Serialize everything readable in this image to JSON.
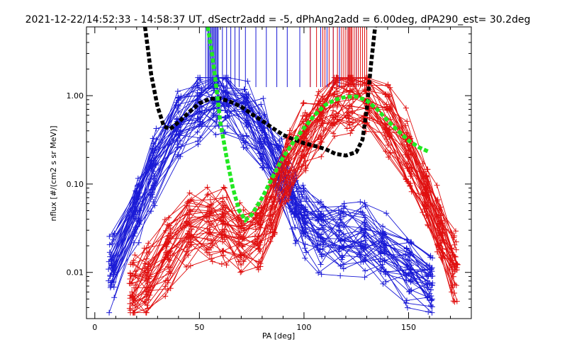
{
  "chart_data": {
    "type": "line",
    "title": "2021-12-22/14:52:33 - 14:58:37 UT, dSectr2add = -5, dPhAng2add = 6.00deg, dPA290_est=  30.2deg",
    "xlabel": "PA [deg]",
    "ylabel": "nflux [#/(cm2 s sr MeV)]",
    "xlim": [
      -4,
      180
    ],
    "ylim": [
      0.003,
      6.0
    ],
    "yscale": "log",
    "x_ticks": [
      0,
      50,
      100,
      150
    ],
    "x_tick_labels": [
      "0",
      "50",
      "100",
      "150"
    ],
    "y_ticks": [
      0.01,
      0.1,
      1.0
    ],
    "y_tick_labels": [
      "0.01",
      "0.10",
      "1.00"
    ],
    "grid": false,
    "colors": {
      "blue": "#1a1ad6",
      "red": "#e01010",
      "black": "#000000",
      "green": "#22e822"
    },
    "series": [
      {
        "color": "black",
        "style": "thick-dashed",
        "x": [
          24,
          27,
          30,
          33,
          36,
          40,
          45,
          50,
          55,
          60,
          65,
          70,
          75,
          80,
          85,
          90,
          95,
          100,
          105,
          110,
          115,
          120,
          125,
          128,
          130,
          132,
          134
        ],
        "y": [
          6.0,
          1.7,
          0.75,
          0.45,
          0.42,
          0.5,
          0.65,
          0.82,
          0.92,
          0.93,
          0.85,
          0.75,
          0.62,
          0.52,
          0.43,
          0.36,
          0.32,
          0.29,
          0.27,
          0.25,
          0.22,
          0.21,
          0.23,
          0.32,
          0.7,
          2.2,
          6.0
        ]
      },
      {
        "color": "green",
        "style": "thick-dashed",
        "x": [
          54,
          56,
          58,
          60,
          63,
          66,
          69,
          72,
          75,
          80,
          85,
          90,
          95,
          100,
          105,
          110,
          115,
          120,
          125,
          130,
          135,
          140,
          145,
          150,
          155,
          160
        ],
        "y": [
          6.0,
          3.0,
          1.3,
          0.5,
          0.2,
          0.09,
          0.05,
          0.039,
          0.045,
          0.07,
          0.12,
          0.2,
          0.3,
          0.43,
          0.6,
          0.78,
          0.9,
          0.97,
          0.98,
          0.88,
          0.7,
          0.52,
          0.4,
          0.31,
          0.26,
          0.23
        ]
      }
    ],
    "blue_bundle": {
      "color": "blue",
      "marker": "+",
      "x": [
        8,
        20,
        28,
        40,
        50,
        58,
        63,
        72,
        80,
        88,
        95,
        100,
        108,
        118,
        128,
        138,
        150,
        160
      ],
      "count": 40,
      "top_ticks_x": [
        53,
        54,
        54.5,
        55,
        55.5,
        56,
        56.5,
        57,
        57.5,
        58,
        58.5,
        59,
        61,
        63,
        65,
        67,
        69,
        72,
        77,
        82,
        87,
        92,
        98,
        103,
        108,
        111,
        114,
        117,
        121,
        125
      ]
    },
    "red_bundle": {
      "color": "red",
      "marker": "+",
      "x": [
        18,
        25,
        35,
        45,
        55,
        62,
        70,
        78,
        85,
        92,
        100,
        108,
        115,
        122,
        130,
        140,
        150,
        158,
        165,
        172
      ],
      "count": 40,
      "top_ticks_x": [
        103,
        106,
        109,
        110,
        112,
        114,
        116,
        118,
        119,
        120,
        121,
        121.5,
        122,
        122.5,
        123,
        124,
        125,
        126,
        127,
        128,
        129,
        130
      ]
    }
  }
}
